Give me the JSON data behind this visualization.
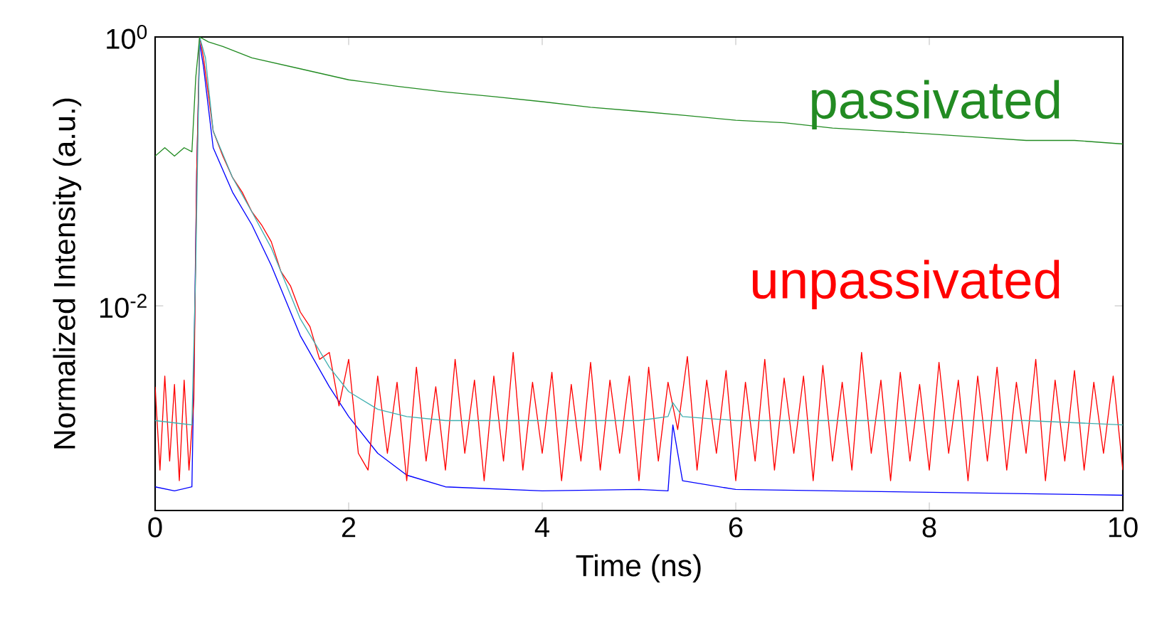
{
  "chart_data": {
    "type": "line",
    "xlabel": "Time (ns)",
    "ylabel": "Normalized Intensity (a.u.)",
    "log": "y",
    "xlim": [
      0,
      10
    ],
    "ylim": [
      0.0003,
      1
    ],
    "xticks": [
      0,
      2,
      4,
      6,
      8,
      10
    ],
    "yticks": [
      {
        "value": 0.01,
        "label": "10$^{-2}$"
      },
      {
        "value": 1,
        "label": "10$^{0}$"
      }
    ],
    "grid": false,
    "legend": false,
    "marker": "none",
    "line_style": "solid",
    "series": [
      {
        "color": "#0000ff",
        "x": [
          0,
          0.2,
          0.38,
          0.4,
          0.43,
          0.46,
          0.5,
          0.6,
          0.8,
          1,
          1.2,
          1.5,
          1.8,
          2,
          2.3,
          2.6,
          3,
          4,
          5,
          5.3,
          5.35,
          5.45,
          6,
          7,
          8,
          9,
          10
        ],
        "values": [
          0.00045,
          0.00042,
          0.00045,
          0.003,
          0.1,
          0.9,
          0.6,
          0.15,
          0.07,
          0.04,
          0.02,
          0.006,
          0.0025,
          0.0015,
          0.0008,
          0.00055,
          0.00045,
          0.00042,
          0.00043,
          0.00042,
          0.0013,
          0.0005,
          0.00043,
          0.00042,
          0.00041,
          0.0004,
          0.00039
        ]
      },
      {
        "name": "unpassivated",
        "color": "#ff0000",
        "x": [
          0,
          0.05,
          0.1,
          0.15,
          0.2,
          0.25,
          0.3,
          0.35,
          0.4,
          0.43,
          0.46,
          0.5,
          0.6,
          0.7,
          0.8,
          0.9,
          1.0,
          1.1,
          1.2,
          1.3,
          1.4,
          1.5,
          1.6,
          1.7,
          1.8,
          1.9,
          2.0,
          2.1,
          2.2,
          2.3,
          2.4,
          2.5,
          2.6,
          2.7,
          2.8,
          2.9,
          3.0,
          3.1,
          3.2,
          3.3,
          3.4,
          3.5,
          3.6,
          3.7,
          3.8,
          3.9,
          4.0,
          4.1,
          4.2,
          4.3,
          4.4,
          4.5,
          4.6,
          4.7,
          4.8,
          4.9,
          5.0,
          5.1,
          5.2,
          5.3,
          5.4,
          5.5,
          5.6,
          5.7,
          5.8,
          5.9,
          6.0,
          6.1,
          6.2,
          6.3,
          6.4,
          6.5,
          6.6,
          6.7,
          6.8,
          6.9,
          7.0,
          7.1,
          7.2,
          7.3,
          7.4,
          7.5,
          7.6,
          7.7,
          7.8,
          7.9,
          8.0,
          8.1,
          8.2,
          8.3,
          8.4,
          8.5,
          8.6,
          8.7,
          8.8,
          8.9,
          9.0,
          9.1,
          9.2,
          9.3,
          9.4,
          9.5,
          9.6,
          9.7,
          9.8,
          9.9,
          10.0
        ],
        "values": [
          0.0025,
          0.0006,
          0.003,
          0.0007,
          0.0026,
          0.0005,
          0.0028,
          0.0006,
          0.002,
          0.1,
          1.0,
          0.7,
          0.2,
          0.13,
          0.09,
          0.07,
          0.05,
          0.04,
          0.03,
          0.018,
          0.014,
          0.009,
          0.007,
          0.004,
          0.0045,
          0.0018,
          0.004,
          0.0008,
          0.0006,
          0.003,
          0.0008,
          0.0027,
          0.0005,
          0.0035,
          0.0007,
          0.0025,
          0.0006,
          0.004,
          0.0008,
          0.0028,
          0.0005,
          0.003,
          0.0007,
          0.0045,
          0.0006,
          0.0027,
          0.0008,
          0.0032,
          0.0005,
          0.0026,
          0.0007,
          0.0038,
          0.0006,
          0.0028,
          0.0008,
          0.003,
          0.0005,
          0.0035,
          0.0007,
          0.0027,
          0.0012,
          0.0042,
          0.0006,
          0.0028,
          0.0008,
          0.0033,
          0.0005,
          0.0027,
          0.0007,
          0.004,
          0.0006,
          0.0029,
          0.0008,
          0.003,
          0.0005,
          0.0036,
          0.0007,
          0.0027,
          0.0006,
          0.0045,
          0.0008,
          0.0028,
          0.0005,
          0.0032,
          0.0007,
          0.0026,
          0.0006,
          0.0038,
          0.0008,
          0.0028,
          0.0005,
          0.003,
          0.0007,
          0.0035,
          0.0006,
          0.0027,
          0.0008,
          0.004,
          0.0005,
          0.0028,
          0.0007,
          0.0033,
          0.0006,
          0.0027,
          0.0008,
          0.003,
          0.0006
        ]
      },
      {
        "color": "#40b0b0",
        "x": [
          0,
          0.38,
          0.42,
          0.46,
          0.52,
          0.6,
          0.8,
          1,
          1.2,
          1.5,
          1.8,
          2,
          2.3,
          2.6,
          3,
          4,
          5,
          5.3,
          5.35,
          5.45,
          6,
          7,
          8,
          9,
          10
        ],
        "values": [
          0.0014,
          0.0013,
          0.02,
          1,
          0.7,
          0.2,
          0.09,
          0.05,
          0.027,
          0.008,
          0.0035,
          0.0023,
          0.0017,
          0.0015,
          0.0014,
          0.0014,
          0.0014,
          0.0015,
          0.0019,
          0.0015,
          0.0014,
          0.0014,
          0.0014,
          0.0014,
          0.0013
        ]
      },
      {
        "name": "passivated",
        "color": "#228b22",
        "x": [
          0,
          0.1,
          0.2,
          0.3,
          0.38,
          0.42,
          0.46,
          0.55,
          0.7,
          1,
          1.5,
          2,
          2.5,
          3,
          3.5,
          4,
          4.5,
          5,
          5.5,
          6,
          6.5,
          7,
          7.5,
          8,
          8.5,
          9,
          9.5,
          10
        ],
        "values": [
          0.13,
          0.15,
          0.13,
          0.15,
          0.14,
          0.5,
          1.0,
          0.92,
          0.85,
          0.7,
          0.58,
          0.48,
          0.43,
          0.39,
          0.36,
          0.33,
          0.3,
          0.28,
          0.26,
          0.24,
          0.23,
          0.21,
          0.2,
          0.19,
          0.18,
          0.17,
          0.17,
          0.16
        ]
      }
    ]
  }
}
